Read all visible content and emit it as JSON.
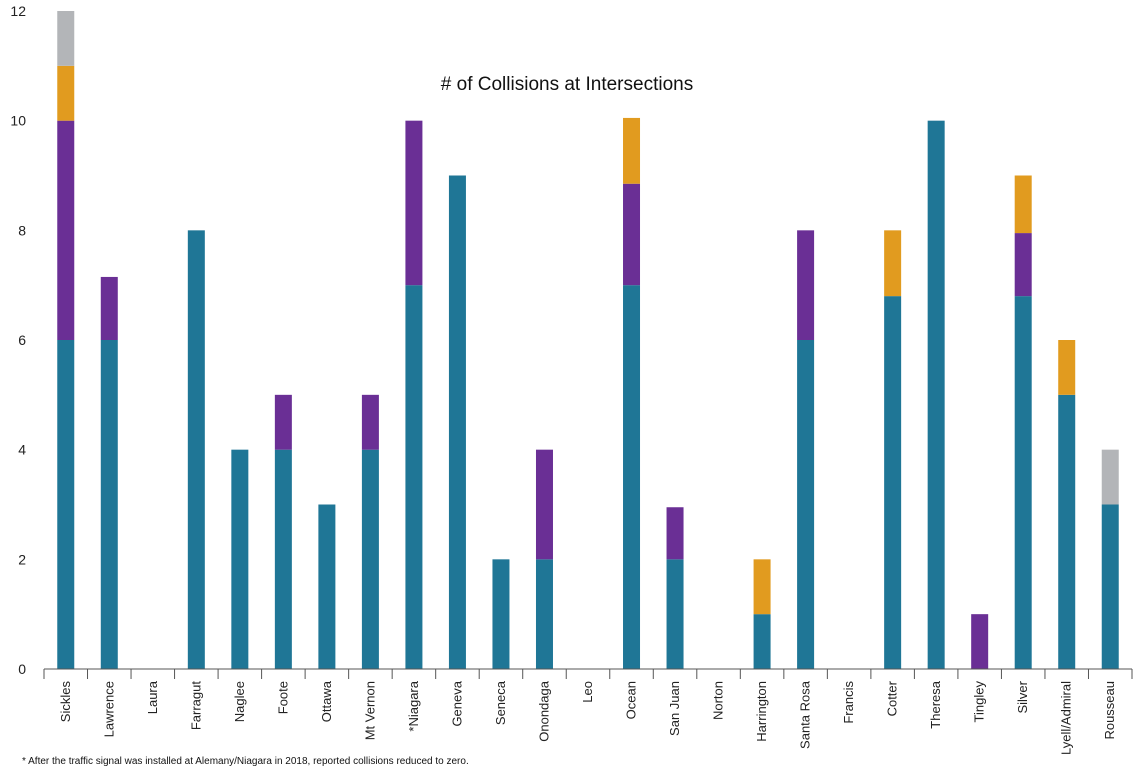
{
  "chart_data": {
    "type": "bar",
    "stacked": true,
    "title": "# of Collisions at Intersections",
    "xlabel": "",
    "ylabel": "",
    "ylim": [
      0,
      12
    ],
    "yticks": [
      0,
      2,
      4,
      6,
      8,
      10,
      12
    ],
    "grid": false,
    "legend": "none",
    "categories": [
      "Sickles",
      "Lawrence",
      "Laura",
      "Farragut",
      "Naglee",
      "Foote",
      "Ottawa",
      "Mt Vernon",
      "*Niagara",
      "Geneva",
      "Seneca",
      "Onondaga",
      "Leo",
      "Ocean",
      "San Juan",
      "Norton",
      "Harrington",
      "Santa Rosa",
      "Francis",
      "Cotter",
      "Theresa",
      "Tingley",
      "Silver",
      "Lyell/Admiral",
      "Rousseau"
    ],
    "series": [
      {
        "color": "#1f7696",
        "values": [
          6,
          6,
          0,
          8,
          4,
          4,
          3,
          4,
          7,
          9,
          2,
          2,
          0,
          7,
          2,
          0,
          1,
          6,
          0,
          6.8,
          10,
          0,
          6.8,
          5,
          3
        ]
      },
      {
        "color": "#6a2f95",
        "values": [
          4,
          1.15,
          0,
          0,
          0,
          1,
          0,
          1,
          3,
          0,
          0,
          2,
          0,
          1.85,
          0.95,
          0,
          0,
          2,
          0,
          0,
          0,
          1,
          1.15,
          0,
          0
        ]
      },
      {
        "color": "#e19b1f",
        "values": [
          1,
          0,
          0,
          0,
          0,
          0,
          0,
          0,
          0,
          0,
          0,
          0,
          0,
          1.2,
          0,
          0,
          1,
          0,
          0,
          1.2,
          0,
          0,
          1.05,
          1,
          0
        ]
      },
      {
        "color": "#b3b5b8",
        "values": [
          1,
          0,
          0,
          0,
          0,
          0,
          0,
          0,
          0,
          0,
          0,
          0,
          0,
          0,
          0,
          0,
          0,
          0,
          0,
          0,
          0,
          0,
          0,
          0,
          1
        ]
      }
    ],
    "footnote": "* After the traffic signal was installed at Alemany/Niagara in 2018, reported collisions reduced to zero."
  }
}
